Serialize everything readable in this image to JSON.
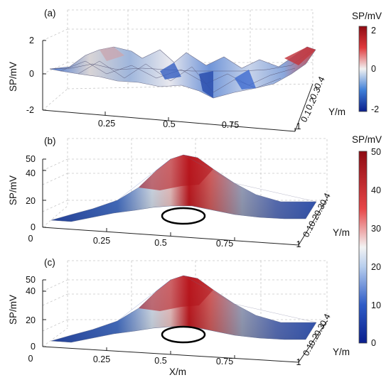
{
  "chart_data": [
    {
      "type": "surface",
      "panel_label": "(a)",
      "xlabel": "",
      "ylabel": "Y/m",
      "zlabel": "SP/mV",
      "xlim": [
        0,
        1
      ],
      "ylim": [
        0.1,
        0.4
      ],
      "zlim": [
        -2,
        2
      ],
      "xticks": [
        "0.25",
        "0.5",
        "0.75",
        "1"
      ],
      "yticks": [
        "0.1",
        "0.2",
        "0.3",
        "0.4"
      ],
      "zticks": [
        "-2",
        "0",
        "2"
      ],
      "colorbar": {
        "title": "SP/mV",
        "range": [
          -2,
          2
        ],
        "ticks": [
          "-2",
          "0",
          "2"
        ]
      },
      "surface": "noisy, values mostly between -1.5 and 1.5 mV with no clear anomaly",
      "grid": true,
      "colors": {
        "low": "#0a1e8c",
        "mid": "#f2f2f2",
        "high": "#8e0a12"
      }
    },
    {
      "type": "surface",
      "panel_label": "(b)",
      "xlabel": "",
      "ylabel": "Y/m",
      "zlabel": "SP/mV",
      "xlim": [
        0,
        1
      ],
      "ylim": [
        0.1,
        0.4
      ],
      "zlim": [
        0,
        50
      ],
      "xticks": [
        "0",
        "0.25",
        "0.5",
        "0.75",
        "1"
      ],
      "yticks": [
        "0.1",
        "0.2",
        "0.3",
        "0.4"
      ],
      "zticks": [
        "0",
        "20",
        "40",
        "50"
      ],
      "colorbar": {
        "title": "SP/mV",
        "range": [
          0,
          50
        ],
        "ticks": [
          "0",
          "10",
          "20",
          "30",
          "40",
          "50"
        ]
      },
      "peak": {
        "x": 0.55,
        "value": 50
      },
      "profile": [
        [
          0,
          2
        ],
        [
          0.1,
          3
        ],
        [
          0.2,
          7
        ],
        [
          0.3,
          15
        ],
        [
          0.4,
          30
        ],
        [
          0.5,
          48
        ],
        [
          0.55,
          50
        ],
        [
          0.6,
          47
        ],
        [
          0.7,
          32
        ],
        [
          0.8,
          17
        ],
        [
          0.9,
          7
        ],
        [
          1,
          3
        ]
      ],
      "grid": true
    },
    {
      "type": "surface",
      "panel_label": "(c)",
      "xlabel": "X/m",
      "ylabel": "Y/m",
      "zlabel": "SP/mV",
      "xlim": [
        0,
        1
      ],
      "ylim": [
        0.1,
        0.4
      ],
      "zlim": [
        0,
        50
      ],
      "xticks": [
        "0",
        "0.25",
        "0.5",
        "0.75",
        "1"
      ],
      "yticks": [
        "0.1",
        "0.2",
        "0.3",
        "0.4"
      ],
      "zticks": [
        "0",
        "20",
        "40",
        "50"
      ],
      "peak": {
        "x": 0.55,
        "value": 50
      },
      "profile": [
        [
          0,
          2
        ],
        [
          0.1,
          3
        ],
        [
          0.2,
          7
        ],
        [
          0.3,
          15
        ],
        [
          0.4,
          30
        ],
        [
          0.5,
          48
        ],
        [
          0.55,
          50
        ],
        [
          0.6,
          47
        ],
        [
          0.7,
          32
        ],
        [
          0.8,
          17
        ],
        [
          0.9,
          7
        ],
        [
          1,
          3
        ]
      ],
      "grid": true
    }
  ]
}
